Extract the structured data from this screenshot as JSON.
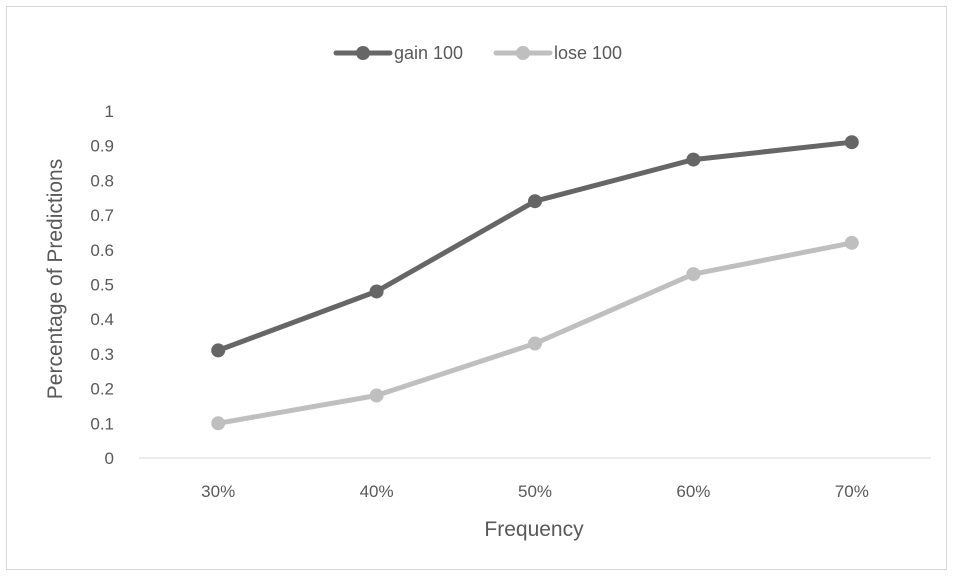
{
  "chart_data": {
    "type": "line",
    "title": "",
    "xlabel": "Frequency",
    "ylabel": "Percentage of Predictions",
    "categories": [
      "30%",
      "40%",
      "50%",
      "60%",
      "70%"
    ],
    "ylim": [
      0,
      1
    ],
    "yticks": [
      "0",
      "0.1",
      "0.2",
      "0.3",
      "0.4",
      "0.5",
      "0.6",
      "0.7",
      "0.8",
      "0.9",
      "1"
    ],
    "grid": false,
    "legend_position": "top",
    "series": [
      {
        "name": "gain 100",
        "color": "#666666",
        "values": [
          0.31,
          0.48,
          0.74,
          0.86,
          0.91
        ]
      },
      {
        "name": "lose 100",
        "color": "#bfbfbf",
        "values": [
          0.1,
          0.18,
          0.33,
          0.53,
          0.62
        ]
      }
    ]
  }
}
